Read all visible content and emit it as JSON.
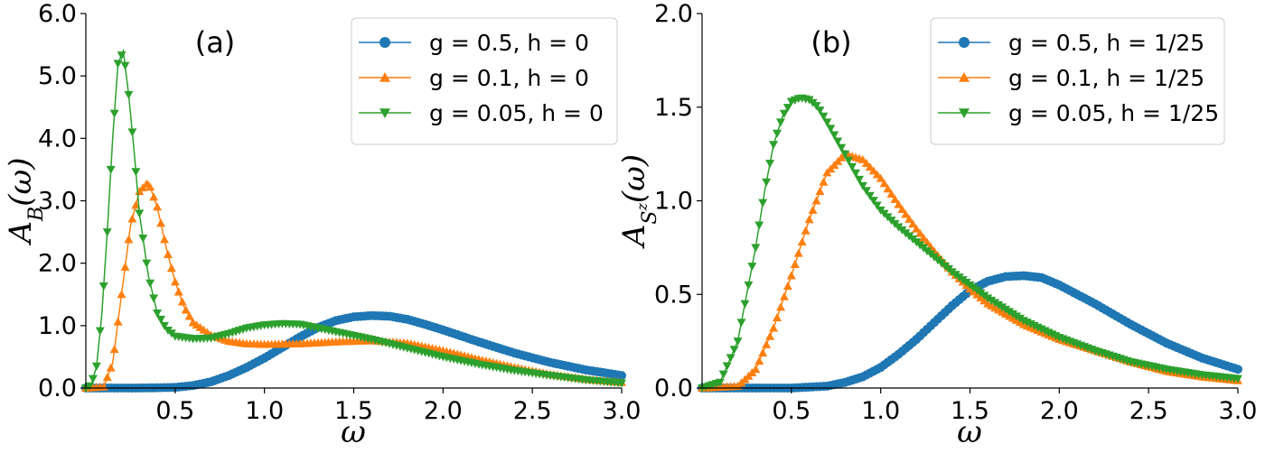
{
  "chart_data": [
    {
      "type": "line",
      "panel_label": "(a)",
      "xlabel": "ω",
      "ylabel": "A_B(ω)",
      "xlim": [
        0.0,
        3.0
      ],
      "ylim": [
        0.0,
        6.0
      ],
      "xticks": [
        0.5,
        1.0,
        1.5,
        2.0,
        2.5,
        3.0
      ],
      "xtick_labels": [
        "0.5",
        "1.0",
        "1.5",
        "2.0",
        "2.5",
        "3.0"
      ],
      "yticks": [
        0.0,
        1.0,
        2.0,
        3.0,
        4.0,
        5.0,
        6.0
      ],
      "ytick_labels": [
        "0.0",
        "1.0",
        "2.0",
        "3.0",
        "4.0",
        "5.0",
        "6.0"
      ],
      "grid": false,
      "legend_position": "top-right",
      "series": [
        {
          "name": "g = 0.5, h = 0",
          "color": "#1f77b4",
          "marker": "circle",
          "x": [
            0.0,
            0.3,
            0.5,
            0.6,
            0.7,
            0.8,
            0.9,
            1.0,
            1.1,
            1.2,
            1.3,
            1.4,
            1.5,
            1.6,
            1.7,
            1.8,
            1.9,
            2.0,
            2.2,
            2.4,
            2.6,
            2.8,
            3.0
          ],
          "y": [
            0.0,
            0.0,
            0.01,
            0.04,
            0.1,
            0.2,
            0.33,
            0.48,
            0.65,
            0.82,
            0.97,
            1.08,
            1.14,
            1.16,
            1.15,
            1.1,
            1.02,
            0.93,
            0.74,
            0.56,
            0.41,
            0.29,
            0.2
          ]
        },
        {
          "name": "g = 0.1, h = 0",
          "color": "#ff7f0e",
          "marker": "triangle-up",
          "x": [
            0.0,
            0.1,
            0.15,
            0.2,
            0.25,
            0.3,
            0.35,
            0.4,
            0.45,
            0.5,
            0.55,
            0.6,
            0.7,
            0.8,
            0.9,
            1.0,
            1.2,
            1.4,
            1.6,
            1.8,
            2.0,
            2.2,
            2.4,
            2.6,
            2.8,
            3.0
          ],
          "y": [
            0.0,
            0.02,
            0.4,
            1.5,
            2.6,
            3.15,
            3.3,
            2.9,
            2.25,
            1.7,
            1.3,
            1.05,
            0.85,
            0.75,
            0.71,
            0.7,
            0.71,
            0.74,
            0.76,
            0.72,
            0.6,
            0.46,
            0.33,
            0.22,
            0.14,
            0.09
          ]
        },
        {
          "name": "g = 0.05, h = 0",
          "color": "#2ca02c",
          "marker": "triangle-down",
          "x": [
            0.0,
            0.03,
            0.06,
            0.09,
            0.12,
            0.15,
            0.18,
            0.21,
            0.24,
            0.27,
            0.3,
            0.35,
            0.4,
            0.45,
            0.5,
            0.6,
            0.7,
            0.8,
            0.9,
            1.0,
            1.1,
            1.2,
            1.3,
            1.4,
            1.6,
            1.8,
            2.0,
            2.2,
            2.4,
            2.6,
            2.8,
            3.0
          ],
          "y": [
            0.0,
            0.05,
            0.35,
            1.2,
            2.5,
            4.0,
            5.2,
            5.4,
            4.7,
            3.8,
            2.8,
            1.8,
            1.2,
            0.95,
            0.83,
            0.79,
            0.8,
            0.87,
            0.96,
            1.01,
            1.03,
            1.02,
            0.96,
            0.9,
            0.78,
            0.64,
            0.5,
            0.38,
            0.28,
            0.2,
            0.13,
            0.08
          ]
        }
      ]
    },
    {
      "type": "line",
      "panel_label": "(b)",
      "xlabel": "ω",
      "ylabel": "A_{S^z}(ω)",
      "xlim": [
        0.0,
        3.0
      ],
      "ylim": [
        0.0,
        2.0
      ],
      "xticks": [
        0.5,
        1.0,
        1.5,
        2.0,
        2.5,
        3.0
      ],
      "xtick_labels": [
        "0.5",
        "1.0",
        "1.5",
        "2.0",
        "2.5",
        "3.0"
      ],
      "yticks": [
        0.0,
        0.5,
        1.0,
        1.5,
        2.0
      ],
      "ytick_labels": [
        "0.0",
        "0.5",
        "1.0",
        "1.5",
        "2.0"
      ],
      "grid": false,
      "legend_position": "top-right",
      "series": [
        {
          "name": "g = 0.5, h = 1/25",
          "color": "#1f77b4",
          "marker": "circle",
          "x": [
            0.0,
            0.5,
            0.7,
            0.8,
            0.9,
            1.0,
            1.1,
            1.2,
            1.3,
            1.4,
            1.5,
            1.6,
            1.7,
            1.8,
            1.9,
            2.0,
            2.2,
            2.4,
            2.6,
            2.8,
            3.0
          ],
          "y": [
            0.0,
            0.0,
            0.01,
            0.03,
            0.06,
            0.11,
            0.18,
            0.26,
            0.35,
            0.44,
            0.52,
            0.57,
            0.595,
            0.6,
            0.59,
            0.55,
            0.45,
            0.34,
            0.24,
            0.16,
            0.1
          ]
        },
        {
          "name": "g = 0.1, h = 1/25",
          "color": "#ff7f0e",
          "marker": "triangle-up",
          "x": [
            0.0,
            0.2,
            0.3,
            0.4,
            0.5,
            0.6,
            0.7,
            0.8,
            0.9,
            1.0,
            1.1,
            1.2,
            1.3,
            1.4,
            1.5,
            1.6,
            1.8,
            2.0,
            2.2,
            2.4,
            2.6,
            2.8,
            3.0
          ],
          "y": [
            0.0,
            0.01,
            0.1,
            0.32,
            0.6,
            0.9,
            1.15,
            1.25,
            1.22,
            1.12,
            0.98,
            0.85,
            0.73,
            0.62,
            0.53,
            0.45,
            0.34,
            0.26,
            0.2,
            0.14,
            0.09,
            0.06,
            0.04
          ]
        },
        {
          "name": "g = 0.05, h = 1/25",
          "color": "#2ca02c",
          "marker": "triangle-down",
          "x": [
            0.0,
            0.1,
            0.2,
            0.3,
            0.35,
            0.4,
            0.45,
            0.5,
            0.55,
            0.6,
            0.65,
            0.7,
            0.8,
            0.9,
            1.0,
            1.1,
            1.2,
            1.3,
            1.4,
            1.5,
            1.6,
            1.8,
            2.0,
            2.2,
            2.4,
            2.6,
            2.8,
            3.0
          ],
          "y": [
            0.0,
            0.03,
            0.25,
            0.75,
            1.05,
            1.3,
            1.45,
            1.53,
            1.55,
            1.54,
            1.5,
            1.42,
            1.25,
            1.08,
            0.95,
            0.86,
            0.78,
            0.7,
            0.62,
            0.55,
            0.48,
            0.36,
            0.27,
            0.2,
            0.14,
            0.1,
            0.07,
            0.05
          ]
        }
      ]
    }
  ]
}
